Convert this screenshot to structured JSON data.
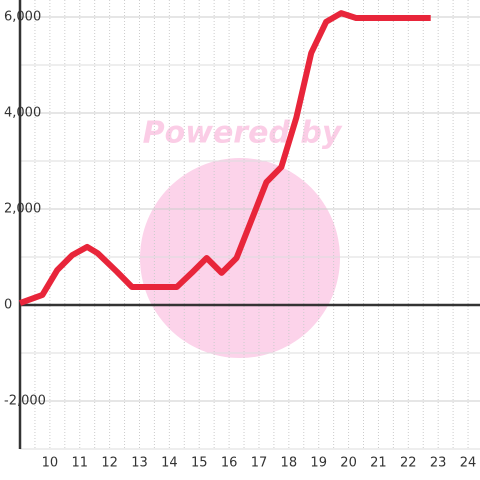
{
  "chart_data": {
    "type": "line",
    "watermark": "Powered by",
    "x": [
      9,
      9.75,
      10.25,
      10.75,
      11.25,
      11.6,
      12.25,
      12.75,
      14.25,
      14.75,
      15.25,
      15.75,
      16.25,
      16.75,
      17.25,
      17.75,
      18.25,
      18.75,
      19.25,
      19.75,
      20.25,
      22.75
    ],
    "series": [
      {
        "color": "#e8253a",
        "values": [
          40,
          210,
          730,
          1040,
          1210,
          1080,
          690,
          375,
          375,
          670,
          980,
          670,
          980,
          1770,
          2560,
          2875,
          3900,
          5250,
          5900,
          6080,
          5980,
          5980
        ]
      }
    ],
    "xlim": [
      9,
      24.4
    ],
    "xticks": [
      10,
      11,
      12,
      13,
      14,
      15,
      16,
      17,
      18,
      19,
      20,
      21,
      22,
      23,
      24
    ],
    "x_minor_grid": [
      9.5,
      10.5,
      11.5,
      12.5,
      13.5,
      14.5,
      15.5,
      16.5,
      17.5,
      18.5,
      19.5,
      20.5,
      21.5,
      22.5,
      23.5
    ],
    "ylim": [
      -3000,
      6000
    ],
    "yticks": [
      {
        "value": -2000,
        "label": "-2,000"
      },
      0,
      {
        "value": 2000,
        "label": "2,000"
      },
      {
        "value": 4000,
        "label": "4,000"
      },
      {
        "value": 6000,
        "label": "6,000"
      }
    ],
    "y_minor_grid": [
      -3000,
      -1000,
      1000,
      3000,
      5000
    ],
    "grid": true
  }
}
